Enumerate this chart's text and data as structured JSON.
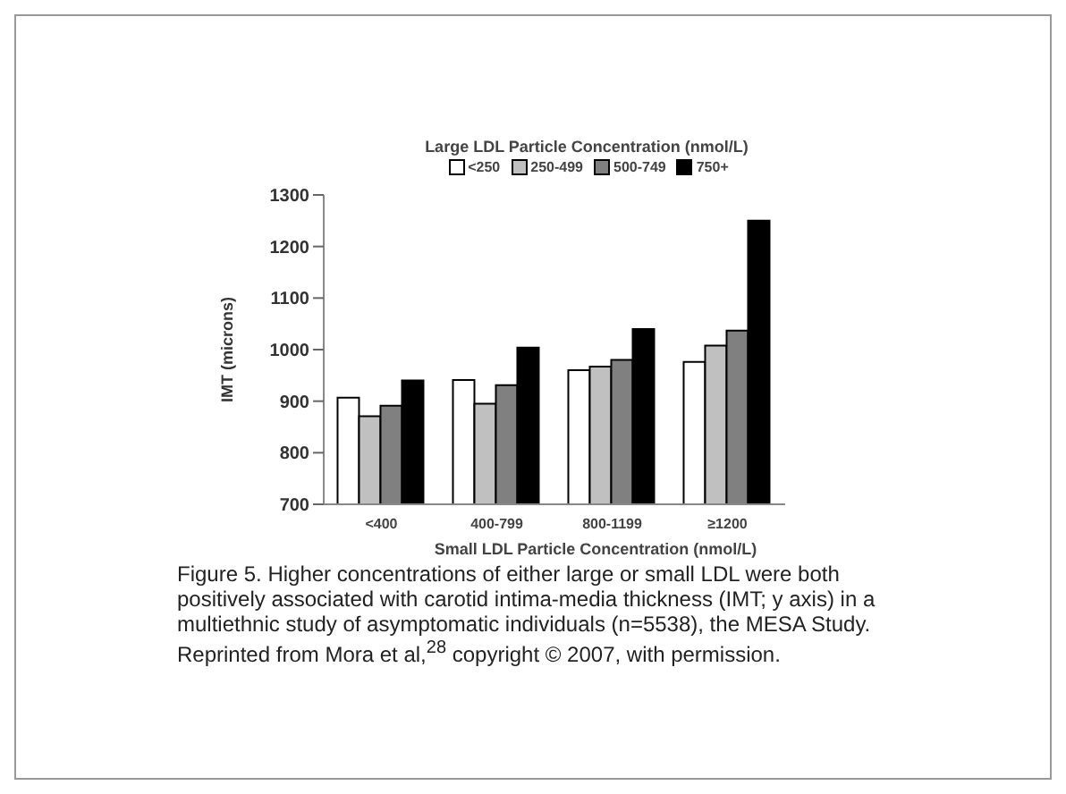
{
  "chart_data": {
    "type": "bar",
    "legend_title": "Large LDL Particle Concentration  (nmol/L)",
    "xlabel": "Small LDL Particle Concentration  (nmol/L)",
    "ylabel": "IMT (microns)",
    "categories": [
      "<400",
      "400-799",
      "800-1199",
      "≥1200"
    ],
    "series": [
      {
        "name": "<250",
        "color": "#ffffff",
        "values": [
          907,
          941,
          960,
          976
        ]
      },
      {
        "name": "250-499",
        "color": "#c0c0c0",
        "values": [
          871,
          895,
          967,
          1008
        ]
      },
      {
        "name": "500-749",
        "color": "#808080",
        "values": [
          891,
          931,
          980,
          1037
        ]
      },
      {
        "name": "750+",
        "color": "#000000",
        "values": [
          940,
          1004,
          1040,
          1250
        ]
      }
    ],
    "ylim": [
      700,
      1300
    ],
    "yticks": [
      700,
      800,
      900,
      1000,
      1100,
      1200,
      1300
    ],
    "grid": false,
    "legend": "top",
    "annotations": [
      "Figure 5. Higher concentrations of either large or small LDL were both positively associated with carotid intima-media thickness (IMT; y axis) in a multiethnic study of asymptomatic individuals (n=5538), the MESA Study. Reprinted from Mora et al,$^{28}$ copyright © 2007, with permission."
    ]
  }
}
